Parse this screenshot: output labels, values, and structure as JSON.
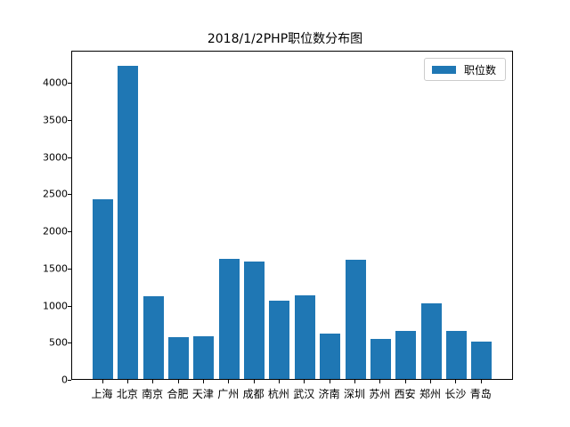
{
  "chart_data": {
    "type": "bar",
    "title": "2018/1/2PHP职位数分布图",
    "xlabel": "",
    "ylabel": "",
    "categories": [
      "上海",
      "北京",
      "南京",
      "合肥",
      "天津",
      "广州",
      "成都",
      "杭州",
      "武汉",
      "济南",
      "深圳",
      "苏州",
      "西安",
      "郑州",
      "长沙",
      "青岛"
    ],
    "series": [
      {
        "name": "职位数",
        "color": "#1f77b4",
        "values": [
          2419,
          4216,
          1114,
          563,
          575,
          1617,
          1581,
          1054,
          1126,
          611,
          1605,
          539,
          647,
          1018,
          647,
          503
        ]
      }
    ],
    "ylim": [
      0,
      4430
    ],
    "yticks": [
      0,
      500,
      1000,
      1500,
      2000,
      2500,
      3000,
      3500,
      4000
    ],
    "grid": false,
    "legend_position": "upper right"
  }
}
